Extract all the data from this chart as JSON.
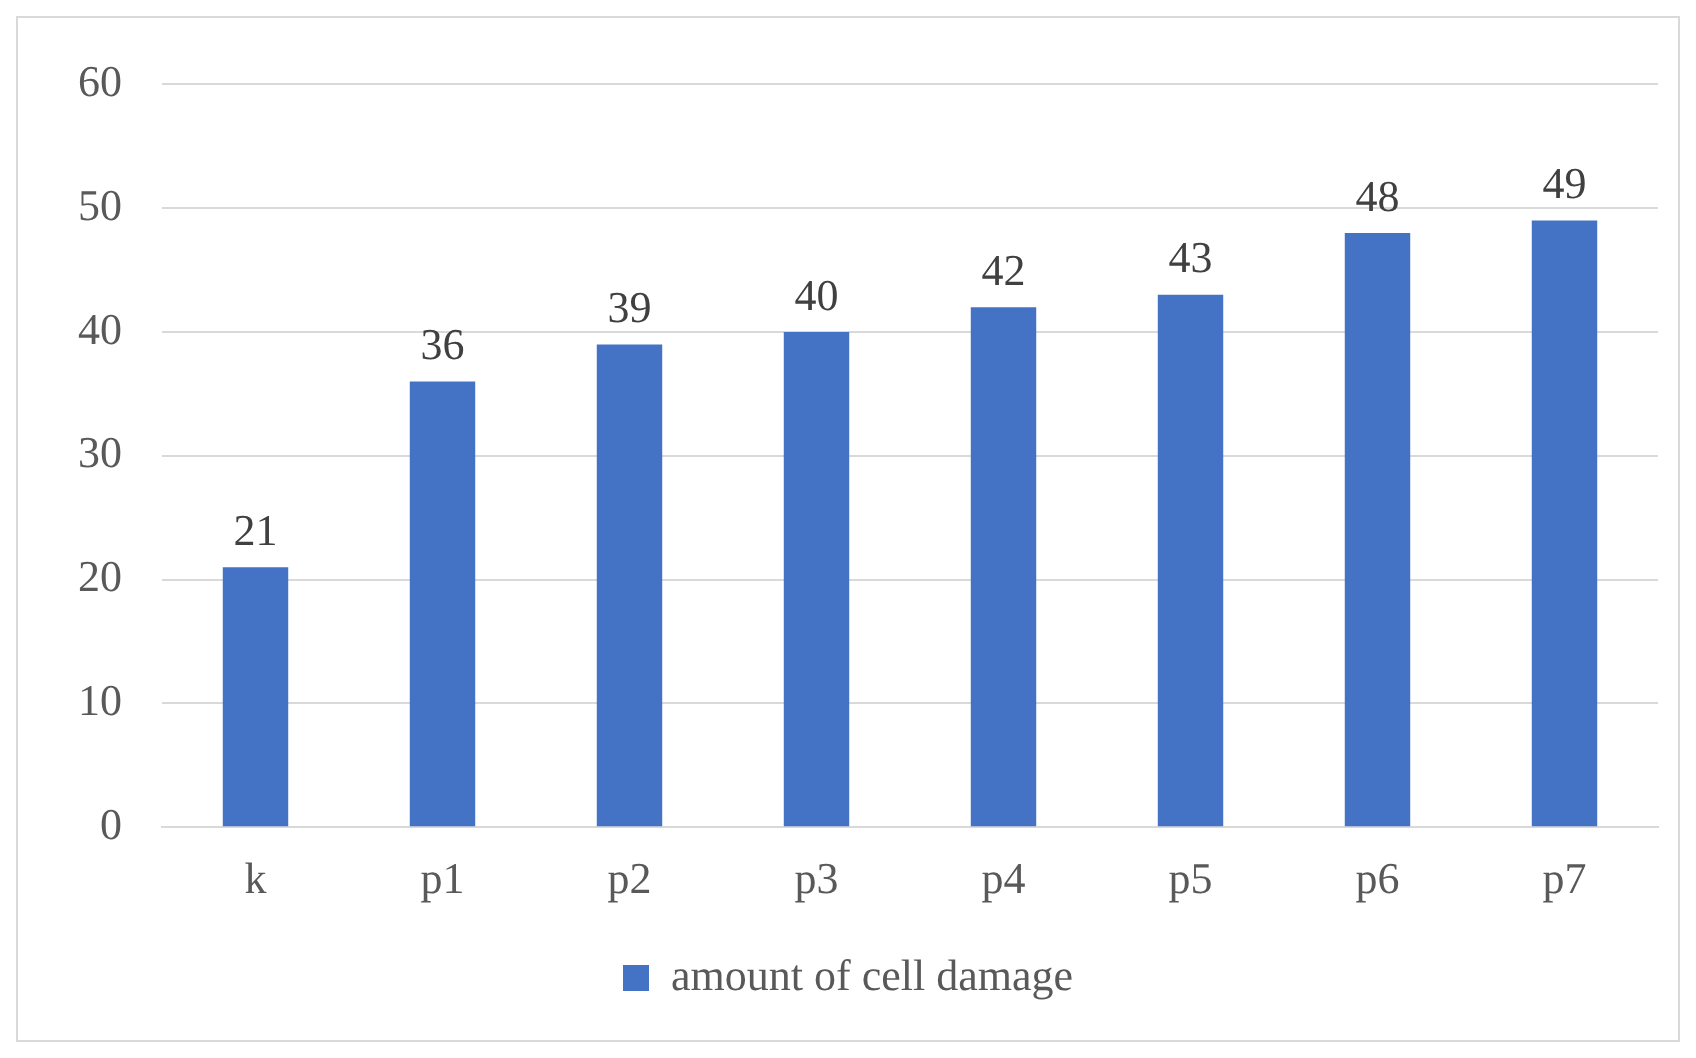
{
  "chart_data": {
    "type": "bar",
    "categories": [
      "k",
      "p1",
      "p2",
      "p3",
      "p4",
      "p5",
      "p6",
      "p7"
    ],
    "series": [
      {
        "name": "amount of cell damage",
        "color": "#4472c4",
        "values": [
          21,
          36,
          39,
          40,
          42,
          43,
          48,
          49
        ]
      }
    ],
    "ylim": [
      0,
      60
    ],
    "yticks": [
      0,
      10,
      20,
      30,
      40,
      50,
      60
    ],
    "grid": "y",
    "legend": "bottom",
    "data_labels": true
  }
}
